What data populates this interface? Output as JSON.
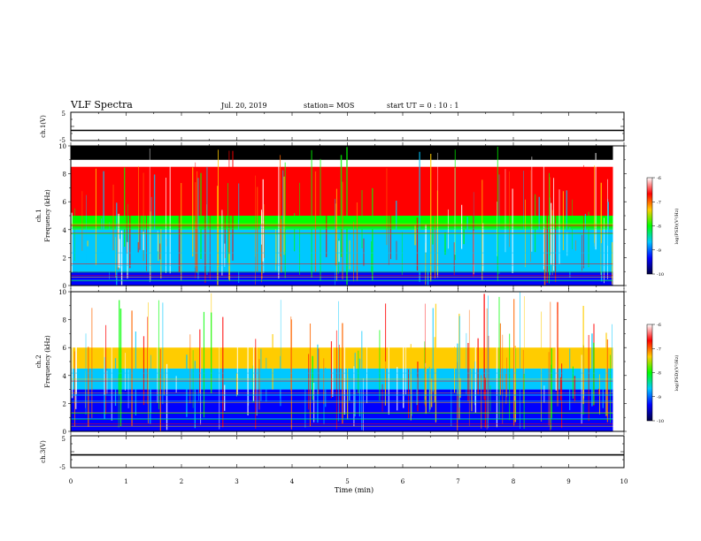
{
  "header": {
    "title": "VLF Spectra",
    "date": "Jul. 20, 2019",
    "station": "station= MOS",
    "start_time": "start UT =  0 : 10 : 1"
  },
  "colorbar": {
    "label": "log(PSD)(V²/Hz)",
    "ticks": [
      "-6",
      "-7",
      "-8",
      "-9",
      "-10"
    ],
    "stops": [
      "#ffffff",
      "#ff0000",
      "#ffcc00",
      "#00ff00",
      "#00c8ff",
      "#0000ff",
      "#000040"
    ]
  },
  "chart_data": [
    {
      "type": "line",
      "panel": "ch1-waveform",
      "ylabel": "ch.1(V)",
      "ylim": [
        -5,
        5
      ],
      "yticks": [
        "5",
        "-5"
      ],
      "x": [
        0,
        10
      ],
      "values": [
        -1.4,
        -1.4
      ],
      "xlim": [
        0,
        10
      ]
    },
    {
      "type": "heatmap",
      "panel": "ch1-spectrogram",
      "ylabel": "ch.1\nFrequency (kHz)",
      "ylabel_line1": "ch.1",
      "ylabel_line2": "Frequency (kHz)",
      "ylim": [
        0,
        10
      ],
      "yticks": [
        "0",
        "2",
        "4",
        "6",
        "8",
        "10"
      ],
      "xlim": [
        0,
        10
      ],
      "data_end_min": 9.8,
      "zlim": [
        -10,
        -6
      ],
      "bands_kHz": [
        {
          "from": 9.0,
          "to": 10.0,
          "level": -10.5
        },
        {
          "from": 5.0,
          "to": 8.5,
          "level": -6.9
        },
        {
          "from": 4.0,
          "to": 5.0,
          "level": -7.8
        },
        {
          "from": 1.0,
          "to": 4.0,
          "level": -8.6
        },
        {
          "from": 0.0,
          "to": 1.0,
          "level": -9.2
        }
      ]
    },
    {
      "type": "heatmap",
      "panel": "ch2-spectrogram",
      "ylabel_line1": "ch.2",
      "ylabel_line2": "Frequency (kHz)",
      "ylim": [
        0,
        10
      ],
      "yticks": [
        "0",
        "2",
        "4",
        "6",
        "8",
        "10"
      ],
      "xlim": [
        0,
        10
      ],
      "data_end_min": 9.8,
      "zlim": [
        -10,
        -6
      ],
      "bands_kHz": [
        {
          "from": 6.0,
          "to": 10.0,
          "level": -6.3
        },
        {
          "from": 4.5,
          "to": 6.0,
          "level": -7.2
        },
        {
          "from": 3.0,
          "to": 4.5,
          "level": -8.5
        },
        {
          "from": 0.0,
          "to": 3.0,
          "level": -9.6
        }
      ]
    },
    {
      "type": "line",
      "panel": "ch3-waveform",
      "ylabel": "ch.3(V)",
      "ylim": [
        -5,
        5
      ],
      "yticks": [
        "5",
        "-5"
      ],
      "x": [
        0,
        10
      ],
      "values": [
        -1.0,
        -1.0
      ],
      "xlim": [
        0,
        10
      ],
      "xlabel": "Time (min)",
      "xticks": [
        "0",
        "1",
        "2",
        "3",
        "4",
        "5",
        "6",
        "7",
        "8",
        "9",
        "10"
      ]
    }
  ]
}
